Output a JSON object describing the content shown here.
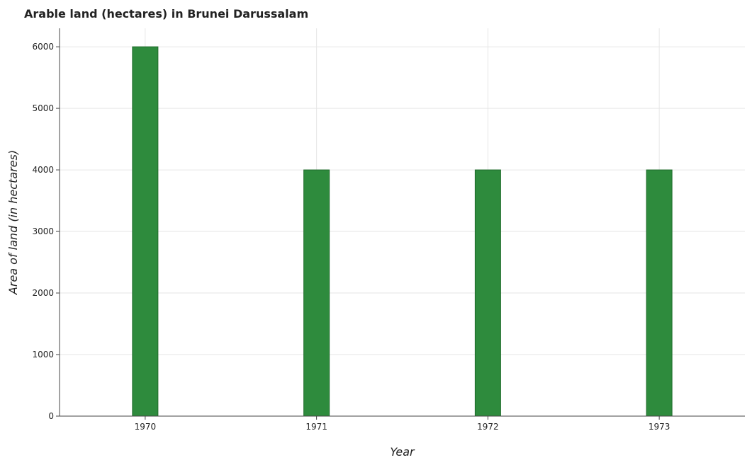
{
  "chart_data": {
    "type": "bar",
    "title": "Arable land (hectares) in Brunei Darussalam",
    "xlabel": "Year",
    "ylabel": "Area of land (in hectares)",
    "categories": [
      "1970",
      "1971",
      "1972",
      "1973"
    ],
    "values": [
      6000,
      4000,
      4000,
      4000
    ],
    "ylim": [
      0,
      6300
    ],
    "yticks": [
      0,
      1000,
      2000,
      3000,
      4000,
      5000,
      6000
    ],
    "ytick_labels": [
      "0",
      "1000",
      "2000",
      "3000",
      "4000",
      "5000",
      "6000"
    ],
    "grid": true,
    "bar_color": "#2e8b3d",
    "bar_edge_color": "#1e6b2a"
  }
}
